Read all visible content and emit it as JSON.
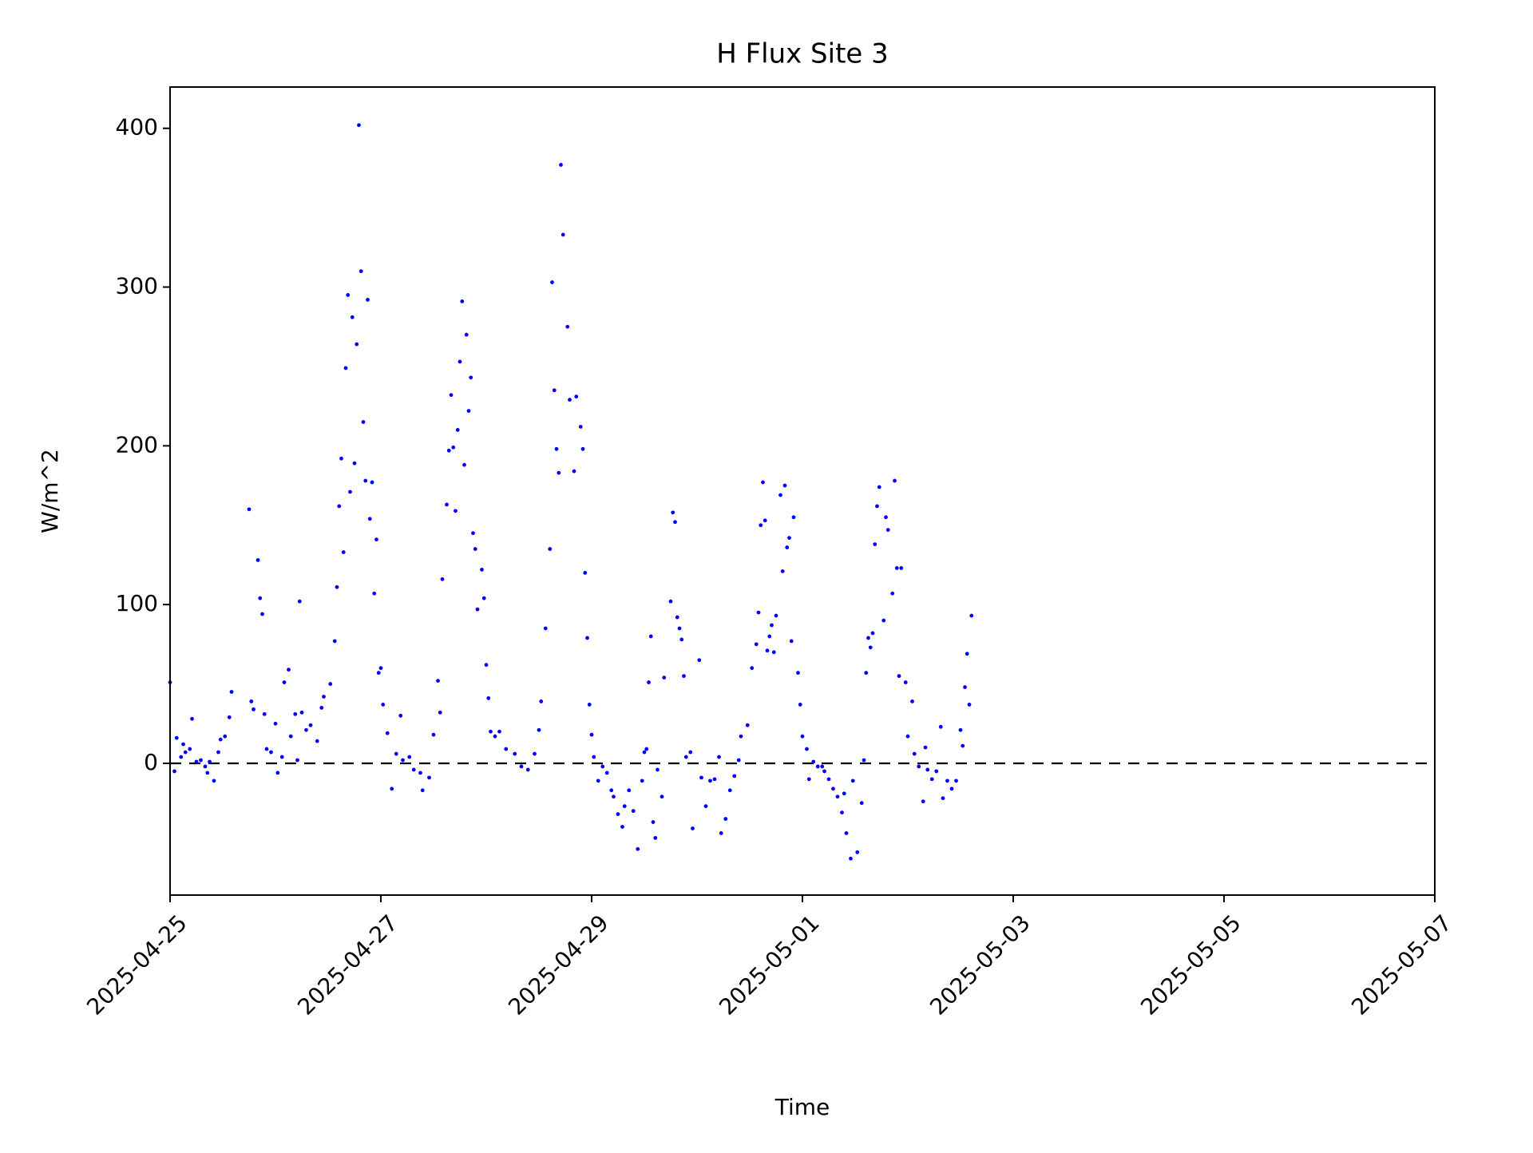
{
  "chart_data": {
    "type": "scatter",
    "title": "H Flux Site 3",
    "x_label": "Time",
    "y_label": "W/m^2",
    "color": "blue",
    "hline": 0,
    "xlim": [
      "2025-04-25",
      "2025-05-07"
    ],
    "xticks": [
      "2025-04-25",
      "2025-04-27",
      "2025-04-29",
      "2025-05-01",
      "2025-05-03",
      "2025-05-05",
      "2025-05-07"
    ],
    "ylim": [
      -83,
      426
    ],
    "yticks": [
      0,
      100,
      200,
      300,
      400
    ],
    "x": [
      "2025-04-25T00:00",
      "2025-04-25T01:00",
      "2025-04-25T01:30",
      "2025-04-25T02:30",
      "2025-04-25T03:00",
      "2025-04-25T03:30",
      "2025-04-25T04:30",
      "2025-04-25T05:00",
      "2025-04-25T06:00",
      "2025-04-25T07:00",
      "2025-04-25T08:00",
      "2025-04-25T08:30",
      "2025-04-25T09:00",
      "2025-04-25T10:00",
      "2025-04-25T11:00",
      "2025-04-25T11:30",
      "2025-04-25T12:30",
      "2025-04-25T13:30",
      "2025-04-25T14:00",
      "2025-04-25T18:00",
      "2025-04-25T18:30",
      "2025-04-25T19:00",
      "2025-04-25T20:00",
      "2025-04-25T20:30",
      "2025-04-25T21:00",
      "2025-04-25T21:30",
      "2025-04-25T22:00",
      "2025-04-25T23:00",
      "2025-04-26T00:00",
      "2025-04-26T00:30",
      "2025-04-26T01:30",
      "2025-04-26T02:00",
      "2025-04-26T03:00",
      "2025-04-26T03:30",
      "2025-04-26T04:30",
      "2025-04-26T05:00",
      "2025-04-26T05:30",
      "2025-04-26T06:00",
      "2025-04-26T07:00",
      "2025-04-26T08:00",
      "2025-04-26T09:30",
      "2025-04-26T10:30",
      "2025-04-26T11:00",
      "2025-04-26T12:30",
      "2025-04-26T13:30",
      "2025-04-26T14:00",
      "2025-04-26T14:30",
      "2025-04-26T15:00",
      "2025-04-26T15:30",
      "2025-04-26T16:00",
      "2025-04-26T16:30",
      "2025-04-26T17:00",
      "2025-04-26T17:30",
      "2025-04-26T18:00",
      "2025-04-26T18:30",
      "2025-04-26T19:00",
      "2025-04-26T19:30",
      "2025-04-26T20:00",
      "2025-04-26T20:30",
      "2025-04-26T21:00",
      "2025-04-26T21:30",
      "2025-04-26T22:00",
      "2025-04-26T22:30",
      "2025-04-26T23:00",
      "2025-04-26T23:30",
      "2025-04-27T00:00",
      "2025-04-27T00:30",
      "2025-04-27T01:30",
      "2025-04-27T02:30",
      "2025-04-27T03:30",
      "2025-04-27T04:30",
      "2025-04-27T05:00",
      "2025-04-27T06:30",
      "2025-04-27T07:30",
      "2025-04-27T09:00",
      "2025-04-27T09:30",
      "2025-04-27T11:00",
      "2025-04-27T12:00",
      "2025-04-27T13:00",
      "2025-04-27T13:30",
      "2025-04-27T14:00",
      "2025-04-27T15:00",
      "2025-04-27T15:30",
      "2025-04-27T16:00",
      "2025-04-27T16:30",
      "2025-04-27T17:00",
      "2025-04-27T17:30",
      "2025-04-27T18:00",
      "2025-04-27T18:30",
      "2025-04-27T19:00",
      "2025-04-27T19:30",
      "2025-04-27T20:00",
      "2025-04-27T20:30",
      "2025-04-27T21:00",
      "2025-04-27T21:30",
      "2025-04-27T22:00",
      "2025-04-27T23:00",
      "2025-04-27T23:30",
      "2025-04-28T00:00",
      "2025-04-28T00:30",
      "2025-04-28T01:00",
      "2025-04-28T02:00",
      "2025-04-28T03:00",
      "2025-04-28T04:30",
      "2025-04-28T06:30",
      "2025-04-28T08:00",
      "2025-04-28T09:30",
      "2025-04-28T11:00",
      "2025-04-28T12:00",
      "2025-04-28T12:30",
      "2025-04-28T13:30",
      "2025-04-28T14:30",
      "2025-04-28T15:00",
      "2025-04-28T15:30",
      "2025-04-28T16:00",
      "2025-04-28T16:30",
      "2025-04-28T17:00",
      "2025-04-28T17:30",
      "2025-04-28T18:30",
      "2025-04-28T19:00",
      "2025-04-28T20:00",
      "2025-04-28T20:30",
      "2025-04-28T21:30",
      "2025-04-28T22:00",
      "2025-04-28T22:30",
      "2025-04-28T23:00",
      "2025-04-28T23:30",
      "2025-04-29T00:00",
      "2025-04-29T00:30",
      "2025-04-29T01:30",
      "2025-04-29T02:30",
      "2025-04-29T03:30",
      "2025-04-29T04:30",
      "2025-04-29T05:00",
      "2025-04-29T06:00",
      "2025-04-29T07:00",
      "2025-04-29T07:30",
      "2025-04-29T08:30",
      "2025-04-29T09:30",
      "2025-04-29T10:30",
      "2025-04-29T11:30",
      "2025-04-29T12:00",
      "2025-04-29T12:30",
      "2025-04-29T13:00",
      "2025-04-29T13:30",
      "2025-04-29T14:00",
      "2025-04-29T14:30",
      "2025-04-29T15:00",
      "2025-04-29T16:00",
      "2025-04-29T16:30",
      "2025-04-29T18:00",
      "2025-04-29T18:30",
      "2025-04-29T19:00",
      "2025-04-29T19:30",
      "2025-04-29T20:00",
      "2025-04-29T20:30",
      "2025-04-29T21:00",
      "2025-04-29T21:30",
      "2025-04-29T22:30",
      "2025-04-29T23:00",
      "2025-04-30T00:30",
      "2025-04-30T01:00",
      "2025-04-30T02:00",
      "2025-04-30T03:00",
      "2025-04-30T04:00",
      "2025-04-30T05:00",
      "2025-04-30T05:30",
      "2025-04-30T06:30",
      "2025-04-30T07:30",
      "2025-04-30T08:30",
      "2025-04-30T09:30",
      "2025-04-30T10:00",
      "2025-04-30T11:30",
      "2025-04-30T12:30",
      "2025-04-30T13:30",
      "2025-04-30T14:00",
      "2025-04-30T14:30",
      "2025-04-30T15:00",
      "2025-04-30T15:30",
      "2025-04-30T16:00",
      "2025-04-30T16:30",
      "2025-04-30T17:00",
      "2025-04-30T17:30",
      "2025-04-30T18:00",
      "2025-04-30T19:00",
      "2025-04-30T19:30",
      "2025-04-30T20:00",
      "2025-04-30T20:30",
      "2025-04-30T21:00",
      "2025-04-30T21:30",
      "2025-04-30T22:00",
      "2025-04-30T23:00",
      "2025-04-30T23:30",
      "2025-05-01T00:00",
      "2025-05-01T01:00",
      "2025-05-01T01:30",
      "2025-05-01T02:30",
      "2025-05-01T03:30",
      "2025-05-01T04:30",
      "2025-05-01T05:00",
      "2025-05-01T06:00",
      "2025-05-01T07:00",
      "2025-05-01T08:00",
      "2025-05-01T09:00",
      "2025-05-01T09:30",
      "2025-05-01T10:00",
      "2025-05-01T11:00",
      "2025-05-01T11:30",
      "2025-05-01T12:30",
      "2025-05-01T13:30",
      "2025-05-01T14:00",
      "2025-05-01T14:30",
      "2025-05-01T15:00",
      "2025-05-01T15:30",
      "2025-05-01T16:00",
      "2025-05-01T16:30",
      "2025-05-01T17:00",
      "2025-05-01T17:30",
      "2025-05-01T18:30",
      "2025-05-01T19:00",
      "2025-05-01T19:30",
      "2025-05-01T20:30",
      "2025-05-01T21:00",
      "2025-05-01T21:30",
      "2025-05-01T22:00",
      "2025-05-01T22:30",
      "2025-05-01T23:30",
      "2025-05-02T00:00",
      "2025-05-02T01:00",
      "2025-05-02T01:30",
      "2025-05-02T02:30",
      "2025-05-02T03:30",
      "2025-05-02T04:00",
      "2025-05-02T04:30",
      "2025-05-02T05:30",
      "2025-05-02T06:30",
      "2025-05-02T07:30",
      "2025-05-02T08:00",
      "2025-05-02T09:00",
      "2025-05-02T10:00",
      "2025-05-02T11:00",
      "2025-05-02T12:00",
      "2025-05-02T12:30",
      "2025-05-02T13:00",
      "2025-05-02T13:30",
      "2025-05-02T14:00",
      "2025-05-02T14:30"
    ],
    "values": [
      51,
      -5,
      16,
      4,
      12,
      7,
      9,
      28,
      1,
      2,
      -2,
      -6,
      1,
      -11,
      7,
      15,
      17,
      29,
      45,
      160,
      39,
      34,
      128,
      104,
      94,
      31,
      9,
      7,
      25,
      -6,
      4,
      51,
      59,
      17,
      31,
      2,
      102,
      32,
      21,
      24,
      14,
      35,
      42,
      50,
      77,
      111,
      162,
      192,
      133,
      249,
      295,
      171,
      281,
      189,
      264,
      402,
      310,
      215,
      178,
      292,
      154,
      177,
      107,
      141,
      57,
      60,
      37,
      19,
      -16,
      6,
      30,
      2,
      4,
      -4,
      -6,
      -17,
      -9,
      18,
      52,
      32,
      116,
      163,
      197,
      232,
      199,
      159,
      210,
      253,
      291,
      188,
      270,
      222,
      243,
      145,
      135,
      97,
      122,
      104,
      62,
      41,
      20,
      17,
      20,
      9,
      6,
      -2,
      -4,
      6,
      21,
      39,
      85,
      135,
      303,
      235,
      198,
      183,
      377,
      333,
      275,
      229,
      184,
      231,
      212,
      198,
      120,
      79,
      37,
      18,
      4,
      -11,
      -2,
      -6,
      -17,
      -21,
      -32,
      -40,
      -27,
      -17,
      -30,
      -54,
      -11,
      7,
      9,
      51,
      80,
      -37,
      -47,
      -4,
      -21,
      54,
      102,
      158,
      152,
      92,
      85,
      78,
      55,
      4,
      7,
      -41,
      65,
      -9,
      -27,
      -11,
      -10,
      4,
      -44,
      -35,
      -17,
      -8,
      2,
      17,
      24,
      60,
      75,
      95,
      150,
      177,
      153,
      71,
      80,
      87,
      70,
      93,
      169,
      121,
      175,
      136,
      142,
      77,
      155,
      57,
      37,
      17,
      9,
      -10,
      1,
      -2,
      -2,
      -5,
      -10,
      -16,
      -21,
      -31,
      -19,
      -44,
      -60,
      -11,
      -56,
      -25,
      2,
      57,
      79,
      73,
      82,
      138,
      162,
      174,
      90,
      155,
      147,
      107,
      178,
      123,
      55,
      123,
      51,
      17,
      39,
      6,
      -2,
      -24,
      10,
      -4,
      -10,
      -5,
      23,
      -22,
      -11,
      -16,
      -11,
      21,
      11,
      48,
      69,
      37,
      93
    ]
  }
}
